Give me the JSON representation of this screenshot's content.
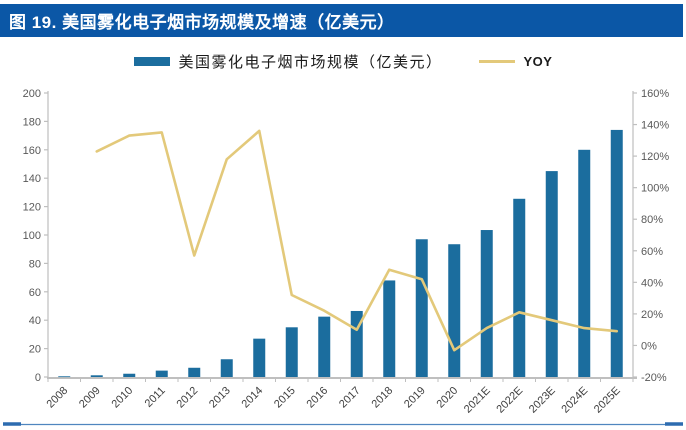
{
  "title_bar": {
    "text": "图 19. 美国雾化电子烟市场规模及增速（亿美元）",
    "bg_color": "#0b57a6",
    "text_color": "#ffffff"
  },
  "legend": {
    "series_label": "美国雾化电子烟市场规模（亿美元）",
    "yoy_label": "YOY",
    "bar_color": "#1b6d9e",
    "line_color": "#e3c97a"
  },
  "chart_data": {
    "type": "bar",
    "title": "美国雾化电子烟市场规模及增速（亿美元）",
    "categories": [
      "2008",
      "2009",
      "2010",
      "2011",
      "2012",
      "2013",
      "2014",
      "2015",
      "2016",
      "2017",
      "2018",
      "2019",
      "2020",
      "2021E",
      "2022E",
      "2023E",
      "2024E",
      "2025E"
    ],
    "series": [
      {
        "name": "美国雾化电子烟市场规模（亿美元）",
        "type": "bar",
        "axis": "left",
        "color": "#1b6d9e",
        "values": [
          0.5,
          1.2,
          2.3,
          4.5,
          6.5,
          12.5,
          27,
          35,
          42.5,
          46.5,
          68,
          97,
          93.5,
          103.5,
          125.5,
          145,
          160,
          174
        ]
      },
      {
        "name": "YOY",
        "type": "line",
        "axis": "right",
        "color": "#e3c97a",
        "values": [
          null,
          123,
          133,
          135,
          57,
          118,
          136,
          32,
          22,
          10,
          48,
          42,
          -3,
          11,
          21,
          16,
          11,
          9
        ]
      }
    ],
    "left_axis": {
      "min": 0,
      "max": 200,
      "tick_values": [
        0,
        20,
        40,
        60,
        80,
        100,
        120,
        140,
        160,
        180,
        200
      ],
      "tick_labels": [
        "0",
        "20",
        "40",
        "60",
        "80",
        "100",
        "120",
        "140",
        "160",
        "180",
        "200"
      ]
    },
    "right_axis": {
      "min": -20,
      "max": 160,
      "tick_values": [
        -20,
        0,
        20,
        40,
        60,
        80,
        100,
        120,
        140,
        160
      ],
      "tick_labels": [
        "-20%",
        "0%",
        "20%",
        "40%",
        "60%",
        "80%",
        "100%",
        "120%",
        "140%",
        "160%"
      ]
    },
    "grid": false,
    "legend_position": "top",
    "axis_line_color": "#bfbfbf",
    "y_label_color": "#595959",
    "x_label_color": "#404040"
  },
  "footer": {
    "rule_color": "#4f86bf",
    "end_dash_color": "#2d6cb0"
  }
}
